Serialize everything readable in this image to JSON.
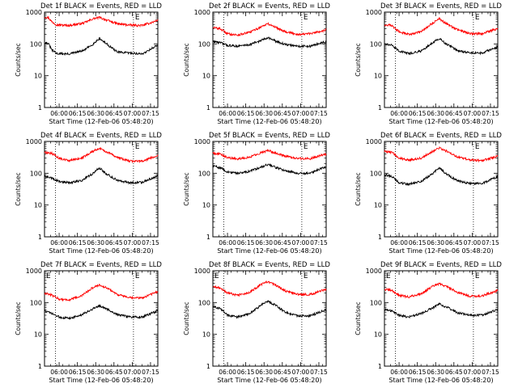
{
  "figure": {
    "ylabel": "Counts/sec",
    "xlabel": "Start Time (12-Feb-06 05:48:20)"
  },
  "colors": {
    "events": "#000000",
    "lld": "#ff0000",
    "axis": "#000000"
  },
  "chart_data": [
    {
      "type": "line",
      "title": "Det 1f BLACK = Events, RED = LLD",
      "xlabel": "Start Time (12-Feb-06 05:48:20)",
      "ylabel": "Counts/sec",
      "xlim": [
        0,
        93
      ],
      "ylim": [
        1,
        1000
      ],
      "y_scale": "log",
      "x_ticks": [
        "06:00",
        "06:15",
        "06:30",
        "06:45",
        "07:00",
        "07:15"
      ],
      "y_ticks": [
        "1",
        "10",
        "100",
        "1000"
      ],
      "events_curve": [
        [
          0,
          110
        ],
        [
          3,
          105
        ],
        [
          6,
          65
        ],
        [
          10,
          50
        ],
        [
          20,
          48
        ],
        [
          32,
          62
        ],
        [
          40,
          100
        ],
        [
          45,
          150
        ],
        [
          51,
          100
        ],
        [
          60,
          55
        ],
        [
          70,
          52
        ],
        [
          80,
          48
        ],
        [
          90,
          80
        ],
        [
          93,
          92
        ]
      ],
      "lld_curve": [
        [
          0,
          700
        ],
        [
          3,
          680
        ],
        [
          6,
          500
        ],
        [
          10,
          400
        ],
        [
          20,
          380
        ],
        [
          32,
          450
        ],
        [
          40,
          620
        ],
        [
          45,
          680
        ],
        [
          51,
          560
        ],
        [
          60,
          430
        ],
        [
          70,
          390
        ],
        [
          80,
          380
        ],
        [
          90,
          500
        ],
        [
          93,
          560
        ]
      ],
      "markers": [
        {
          "label": "E",
          "x": 77
        }
      ]
    },
    {
      "type": "line",
      "title": "Det 2f BLACK = Events, RED = LLD",
      "xlabel": "Start Time (12-Feb-06 05:48:20)",
      "ylabel": "Counts/sec",
      "xlim": [
        0,
        93
      ],
      "ylim": [
        1,
        1000
      ],
      "y_scale": "log",
      "x_ticks": [
        "06:00",
        "06:15",
        "06:30",
        "06:45",
        "07:00",
        "07:15"
      ],
      "y_ticks": [
        "1",
        "10",
        "100",
        "1000"
      ],
      "events_curve": [
        [
          0,
          120
        ],
        [
          6,
          110
        ],
        [
          12,
          90
        ],
        [
          20,
          85
        ],
        [
          30,
          95
        ],
        [
          40,
          130
        ],
        [
          45,
          160
        ],
        [
          52,
          120
        ],
        [
          60,
          95
        ],
        [
          70,
          85
        ],
        [
          80,
          85
        ],
        [
          90,
          110
        ],
        [
          93,
          115
        ]
      ],
      "lld_curve": [
        [
          0,
          330
        ],
        [
          6,
          300
        ],
        [
          12,
          210
        ],
        [
          20,
          190
        ],
        [
          30,
          230
        ],
        [
          40,
          350
        ],
        [
          45,
          430
        ],
        [
          52,
          330
        ],
        [
          60,
          240
        ],
        [
          70,
          200
        ],
        [
          80,
          210
        ],
        [
          90,
          260
        ],
        [
          93,
          280
        ]
      ],
      "markers": [
        {
          "label": "E",
          "x": 77
        }
      ]
    },
    {
      "type": "line",
      "title": "Det 3f BLACK = Events, RED = LLD",
      "xlabel": "Start Time (12-Feb-06 05:48:20)",
      "ylabel": "Counts/sec",
      "xlim": [
        0,
        93
      ],
      "ylim": [
        1,
        1000
      ],
      "y_scale": "log",
      "x_ticks": [
        "06:00",
        "06:15",
        "06:30",
        "06:45",
        "07:00",
        "07:15"
      ],
      "y_ticks": [
        "1",
        "10",
        "100",
        "1000"
      ],
      "events_curve": [
        [
          0,
          100
        ],
        [
          6,
          90
        ],
        [
          12,
          60
        ],
        [
          20,
          50
        ],
        [
          30,
          60
        ],
        [
          40,
          110
        ],
        [
          45,
          150
        ],
        [
          50,
          105
        ],
        [
          60,
          62
        ],
        [
          70,
          52
        ],
        [
          80,
          52
        ],
        [
          90,
          72
        ],
        [
          93,
          80
        ]
      ],
      "lld_curve": [
        [
          0,
          400
        ],
        [
          6,
          380
        ],
        [
          12,
          240
        ],
        [
          20,
          200
        ],
        [
          30,
          240
        ],
        [
          40,
          470
        ],
        [
          45,
          620
        ],
        [
          50,
          450
        ],
        [
          60,
          280
        ],
        [
          70,
          210
        ],
        [
          80,
          210
        ],
        [
          90,
          280
        ],
        [
          93,
          300
        ]
      ],
      "markers": [
        {
          "label": "E",
          "x": 77
        }
      ]
    },
    {
      "type": "line",
      "title": "Det 4f BLACK = Events, RED = LLD",
      "xlabel": "Start Time (12-Feb-06 05:48:20)",
      "ylabel": "Counts/sec",
      "xlim": [
        0,
        93
      ],
      "ylim": [
        1,
        1000
      ],
      "y_scale": "log",
      "x_ticks": [
        "06:00",
        "06:15",
        "06:30",
        "06:45",
        "07:00",
        "07:15"
      ],
      "y_ticks": [
        "1",
        "10",
        "100",
        "1000"
      ],
      "events_curve": [
        [
          0,
          80
        ],
        [
          6,
          70
        ],
        [
          12,
          55
        ],
        [
          20,
          50
        ],
        [
          30,
          58
        ],
        [
          40,
          100
        ],
        [
          45,
          150
        ],
        [
          50,
          100
        ],
        [
          60,
          60
        ],
        [
          70,
          50
        ],
        [
          80,
          52
        ],
        [
          90,
          75
        ],
        [
          93,
          85
        ]
      ],
      "lld_curve": [
        [
          0,
          450
        ],
        [
          6,
          420
        ],
        [
          12,
          300
        ],
        [
          20,
          250
        ],
        [
          30,
          290
        ],
        [
          40,
          500
        ],
        [
          45,
          600
        ],
        [
          52,
          450
        ],
        [
          60,
          320
        ],
        [
          70,
          240
        ],
        [
          80,
          240
        ],
        [
          90,
          330
        ],
        [
          93,
          360
        ]
      ],
      "markers": [
        {
          "label": "E",
          "x": 77
        }
      ]
    },
    {
      "type": "line",
      "title": "Det 5f BLACK = Events, RED = LLD",
      "xlabel": "Start Time (12-Feb-06 05:48:20)",
      "ylabel": "Counts/sec",
      "xlim": [
        0,
        93
      ],
      "ylim": [
        1,
        1000
      ],
      "y_scale": "log",
      "x_ticks": [
        "06:00",
        "06:15",
        "06:30",
        "06:45",
        "07:00",
        "07:15"
      ],
      "y_ticks": [
        "1",
        "10",
        "100",
        "1000"
      ],
      "events_curve": [
        [
          0,
          170
        ],
        [
          6,
          150
        ],
        [
          12,
          110
        ],
        [
          20,
          100
        ],
        [
          30,
          115
        ],
        [
          40,
          160
        ],
        [
          45,
          190
        ],
        [
          52,
          150
        ],
        [
          60,
          120
        ],
        [
          70,
          100
        ],
        [
          80,
          100
        ],
        [
          90,
          150
        ],
        [
          93,
          160
        ]
      ],
      "lld_curve": [
        [
          0,
          430
        ],
        [
          6,
          400
        ],
        [
          12,
          310
        ],
        [
          20,
          280
        ],
        [
          30,
          320
        ],
        [
          40,
          450
        ],
        [
          45,
          520
        ],
        [
          52,
          430
        ],
        [
          60,
          340
        ],
        [
          70,
          290
        ],
        [
          80,
          290
        ],
        [
          90,
          380
        ],
        [
          93,
          400
        ]
      ],
      "markers": [
        {
          "label": "E",
          "x": 77
        }
      ]
    },
    {
      "type": "line",
      "title": "Det 6f BLACK = Events, RED = LLD",
      "xlabel": "Start Time (12-Feb-06 05:48:20)",
      "ylabel": "Counts/sec",
      "xlim": [
        0,
        93
      ],
      "ylim": [
        1,
        1000
      ],
      "y_scale": "log",
      "x_ticks": [
        "06:00",
        "06:15",
        "06:30",
        "06:45",
        "07:00",
        "07:15"
      ],
      "y_ticks": [
        "1",
        "10",
        "100",
        "1000"
      ],
      "events_curve": [
        [
          0,
          90
        ],
        [
          6,
          80
        ],
        [
          12,
          50
        ],
        [
          20,
          45
        ],
        [
          30,
          55
        ],
        [
          40,
          100
        ],
        [
          45,
          150
        ],
        [
          50,
          100
        ],
        [
          60,
          58
        ],
        [
          70,
          48
        ],
        [
          80,
          48
        ],
        [
          90,
          70
        ],
        [
          93,
          80
        ]
      ],
      "lld_curve": [
        [
          0,
          480
        ],
        [
          6,
          460
        ],
        [
          12,
          300
        ],
        [
          20,
          260
        ],
        [
          30,
          300
        ],
        [
          40,
          500
        ],
        [
          45,
          620
        ],
        [
          52,
          480
        ],
        [
          60,
          330
        ],
        [
          70,
          260
        ],
        [
          80,
          250
        ],
        [
          90,
          320
        ],
        [
          93,
          350
        ]
      ],
      "markers": [
        {
          "label": "E",
          "x": 77
        }
      ]
    },
    {
      "type": "line",
      "title": "Det 7f BLACK = Events, RED = LLD",
      "xlabel": "Start Time (12-Feb-06 05:48:20)",
      "ylabel": "Counts/sec",
      "xlim": [
        0,
        93
      ],
      "ylim": [
        1,
        1000
      ],
      "y_scale": "log",
      "x_ticks": [
        "06:00",
        "06:15",
        "06:30",
        "06:45",
        "07:00",
        "07:15"
      ],
      "y_ticks": [
        "1",
        "10",
        "100",
        "1000"
      ],
      "events_curve": [
        [
          0,
          55
        ],
        [
          6,
          45
        ],
        [
          12,
          35
        ],
        [
          20,
          32
        ],
        [
          30,
          40
        ],
        [
          40,
          65
        ],
        [
          45,
          80
        ],
        [
          52,
          60
        ],
        [
          60,
          42
        ],
        [
          70,
          35
        ],
        [
          80,
          35
        ],
        [
          90,
          50
        ],
        [
          93,
          55
        ]
      ],
      "lld_curve": [
        [
          0,
          200
        ],
        [
          6,
          170
        ],
        [
          12,
          130
        ],
        [
          20,
          120
        ],
        [
          30,
          160
        ],
        [
          40,
          300
        ],
        [
          45,
          360
        ],
        [
          52,
          280
        ],
        [
          60,
          180
        ],
        [
          70,
          140
        ],
        [
          80,
          140
        ],
        [
          90,
          200
        ],
        [
          93,
          220
        ]
      ],
      "markers": [
        {
          "label": "E",
          "x": 0
        },
        {
          "label": "E",
          "x": 77
        }
      ]
    },
    {
      "type": "line",
      "title": "Det 8f BLACK = Events, RED = LLD",
      "xlabel": "Start Time (12-Feb-06 05:48:20)",
      "ylabel": "Counts/sec",
      "xlim": [
        0,
        93
      ],
      "ylim": [
        1,
        1000
      ],
      "y_scale": "log",
      "x_ticks": [
        "06:00",
        "06:15",
        "06:30",
        "06:45",
        "07:00",
        "07:15"
      ],
      "y_ticks": [
        "1",
        "10",
        "100",
        "1000"
      ],
      "events_curve": [
        [
          0,
          75
        ],
        [
          6,
          65
        ],
        [
          12,
          40
        ],
        [
          20,
          35
        ],
        [
          30,
          45
        ],
        [
          40,
          85
        ],
        [
          45,
          110
        ],
        [
          52,
          80
        ],
        [
          60,
          48
        ],
        [
          70,
          38
        ],
        [
          80,
          38
        ],
        [
          90,
          55
        ],
        [
          93,
          60
        ]
      ],
      "lld_curve": [
        [
          0,
          320
        ],
        [
          6,
          290
        ],
        [
          12,
          200
        ],
        [
          20,
          170
        ],
        [
          30,
          210
        ],
        [
          40,
          380
        ],
        [
          45,
          460
        ],
        [
          52,
          350
        ],
        [
          60,
          230
        ],
        [
          70,
          180
        ],
        [
          80,
          180
        ],
        [
          90,
          240
        ],
        [
          93,
          260
        ]
      ],
      "markers": [
        {
          "label": "E",
          "x": 0
        },
        {
          "label": "E",
          "x": 77
        }
      ]
    },
    {
      "type": "line",
      "title": "Det 9f BLACK = Events, RED = LLD",
      "xlabel": "Start Time (12-Feb-06 05:48:20)",
      "ylabel": "Counts/sec",
      "xlim": [
        0,
        93
      ],
      "ylim": [
        1,
        1000
      ],
      "y_scale": "log",
      "x_ticks": [
        "06:00",
        "06:15",
        "06:30",
        "06:45",
        "07:00",
        "07:15"
      ],
      "y_ticks": [
        "1",
        "10",
        "100",
        "1000"
      ],
      "events_curve": [
        [
          0,
          60
        ],
        [
          6,
          55
        ],
        [
          12,
          40
        ],
        [
          20,
          35
        ],
        [
          30,
          45
        ],
        [
          40,
          70
        ],
        [
          45,
          90
        ],
        [
          52,
          70
        ],
        [
          60,
          48
        ],
        [
          70,
          40
        ],
        [
          80,
          40
        ],
        [
          90,
          55
        ],
        [
          93,
          60
        ]
      ],
      "lld_curve": [
        [
          0,
          260
        ],
        [
          6,
          240
        ],
        [
          12,
          170
        ],
        [
          20,
          150
        ],
        [
          30,
          190
        ],
        [
          40,
          330
        ],
        [
          45,
          390
        ],
        [
          52,
          310
        ],
        [
          60,
          210
        ],
        [
          70,
          160
        ],
        [
          80,
          160
        ],
        [
          90,
          220
        ],
        [
          93,
          240
        ]
      ],
      "markers": [
        {
          "label": "E",
          "x": 0
        },
        {
          "label": "E",
          "x": 77
        }
      ]
    }
  ]
}
